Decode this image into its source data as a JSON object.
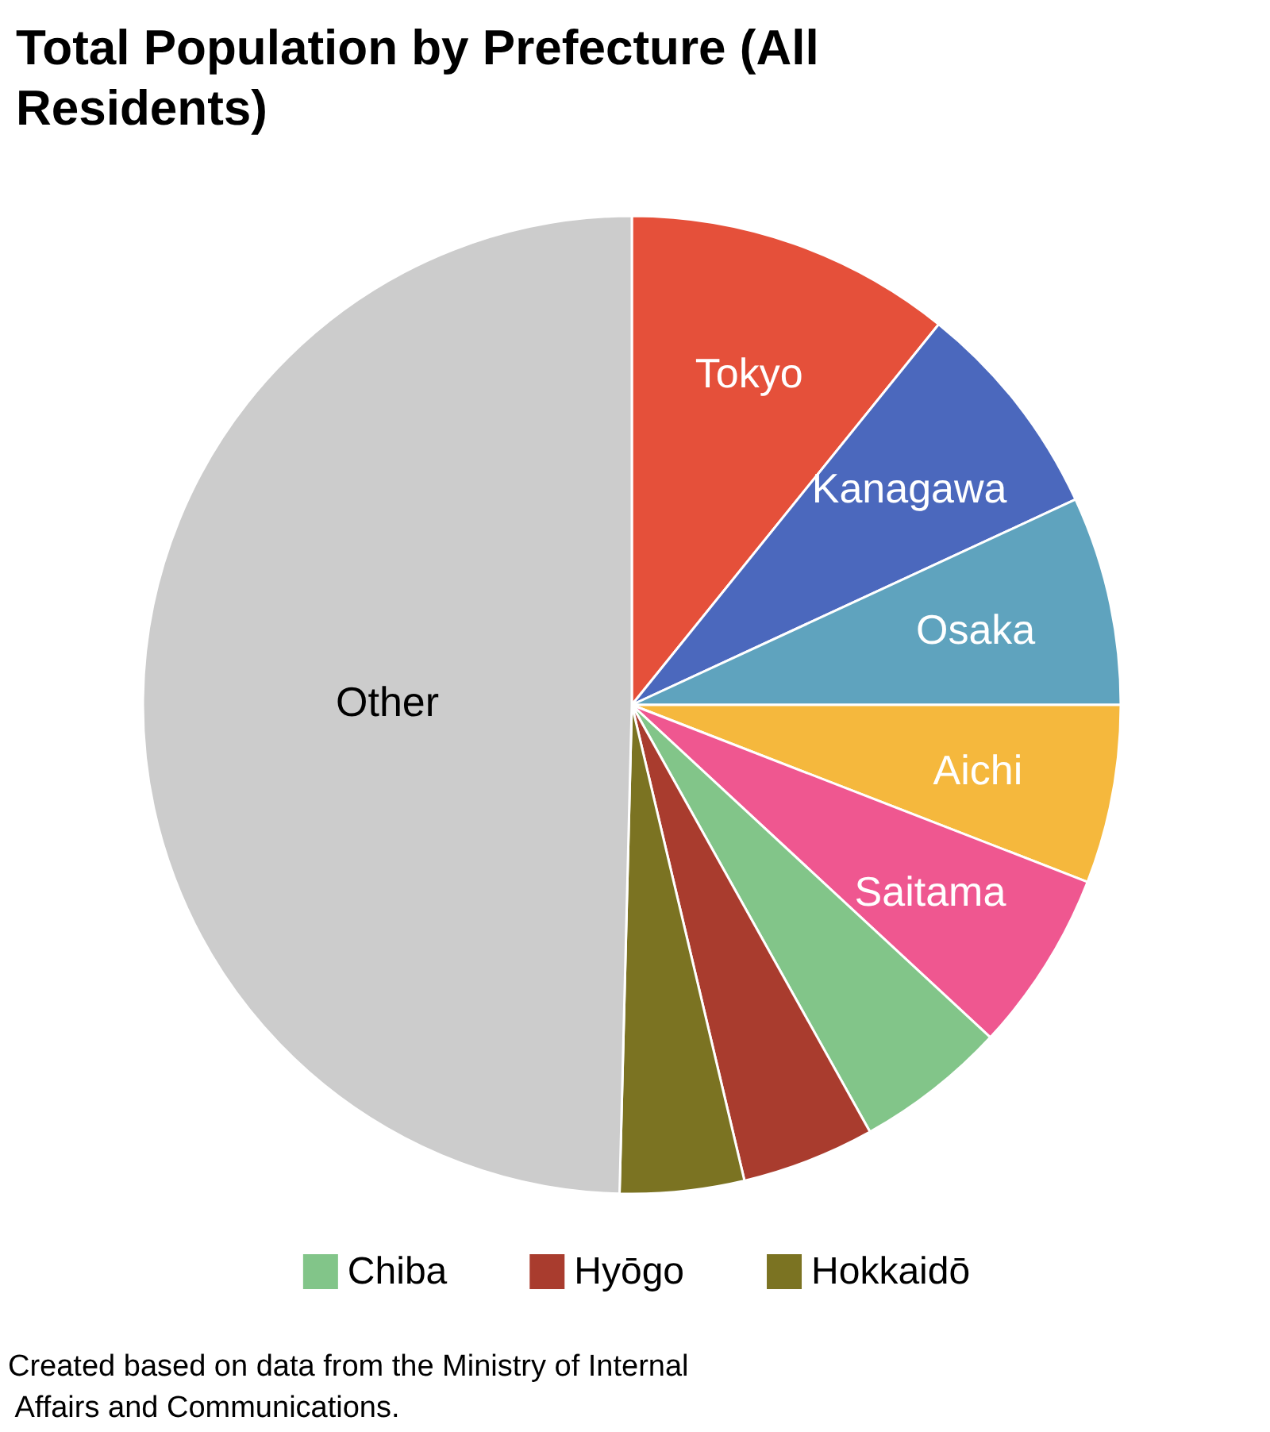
{
  "chart_data": {
    "type": "pie",
    "title": "Total Population by Prefecture (All Residents)",
    "categories": [
      "Tokyo",
      "Kanagawa",
      "Osaka",
      "Aichi",
      "Saitama",
      "Chiba",
      "Hyōgo",
      "Hokkaidō",
      "Other"
    ],
    "values": [
      10.8,
      7.3,
      6.9,
      5.9,
      6.0,
      5.0,
      4.4,
      4.1,
      49.6
    ],
    "colors": [
      "#e5503a",
      "#4b68bd",
      "#5fa3be",
      "#f5b83d",
      "#ef5790",
      "#82c589",
      "#a93c2e",
      "#7b7322",
      "#cccccc"
    ],
    "legend": "bottom",
    "annotations": [
      "Created based on data from the Ministry of Internal Affairs and Communications."
    ]
  }
}
